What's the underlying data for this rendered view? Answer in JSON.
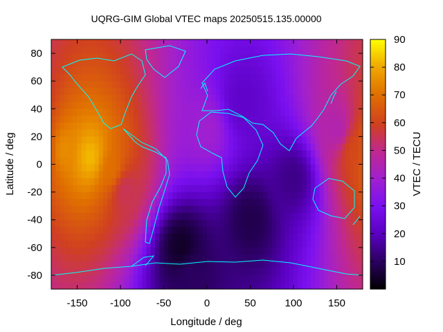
{
  "chart_data": {
    "type": "heatmap",
    "title": "UQRG-GIM Global VTEC maps 20250515.135.00000",
    "xlabel": "Longitude / deg",
    "ylabel": "Latitude / deg",
    "colorbar_label": "VTEC / TECU",
    "xlim": [
      -180,
      180
    ],
    "ylim": [
      -90,
      90
    ],
    "clim": [
      0,
      90
    ],
    "x_ticks": [
      -150,
      -100,
      -50,
      0,
      50,
      100,
      150
    ],
    "x_tick_labels": [
      "-150",
      "-100",
      "-50",
      "0",
      "50",
      "100",
      "150"
    ],
    "y_ticks": [
      80,
      60,
      40,
      20,
      0,
      -20,
      -40,
      -60,
      -80
    ],
    "y_tick_labels": [
      "80",
      "60",
      "40",
      "20",
      "0",
      "-20",
      "-40",
      "-60",
      "-80"
    ],
    "colorbar_ticks": [
      90,
      80,
      70,
      60,
      50,
      40,
      30,
      20,
      10
    ],
    "colorbar_tick_labels": [
      "90",
      "80",
      "70",
      "60",
      "50",
      "40",
      "30",
      "20",
      "10"
    ],
    "colormap": [
      "#000000",
      "#2a0060",
      "#5a00c0",
      "#7a10f0",
      "#a020d0",
      "#c02890",
      "#d04020",
      "#e07000",
      "#f0a800",
      "#ffff00"
    ],
    "coastline_color": "#00ffff",
    "features": [
      {
        "lon": -135,
        "lat": 5,
        "vtec": 82
      },
      {
        "lon": -165,
        "lat": 10,
        "vtec": 75
      },
      {
        "lon": -110,
        "lat": -5,
        "vtec": 70
      },
      {
        "lon": -95,
        "lat": -18,
        "vtec": 55
      },
      {
        "lon": 170,
        "lat": 10,
        "vtec": 62
      },
      {
        "lon": 150,
        "lat": 25,
        "vtec": 45
      },
      {
        "lon": 0,
        "lat": 25,
        "vtec": 40
      },
      {
        "lon": 40,
        "lat": 45,
        "vtec": 22
      },
      {
        "lon": -30,
        "lat": -60,
        "vtec": 4
      },
      {
        "lon": 50,
        "lat": -40,
        "vtec": 8
      },
      {
        "lon": 100,
        "lat": -10,
        "vtec": 14
      },
      {
        "lon": -20,
        "lat": -80,
        "vtec": 10
      }
    ]
  }
}
